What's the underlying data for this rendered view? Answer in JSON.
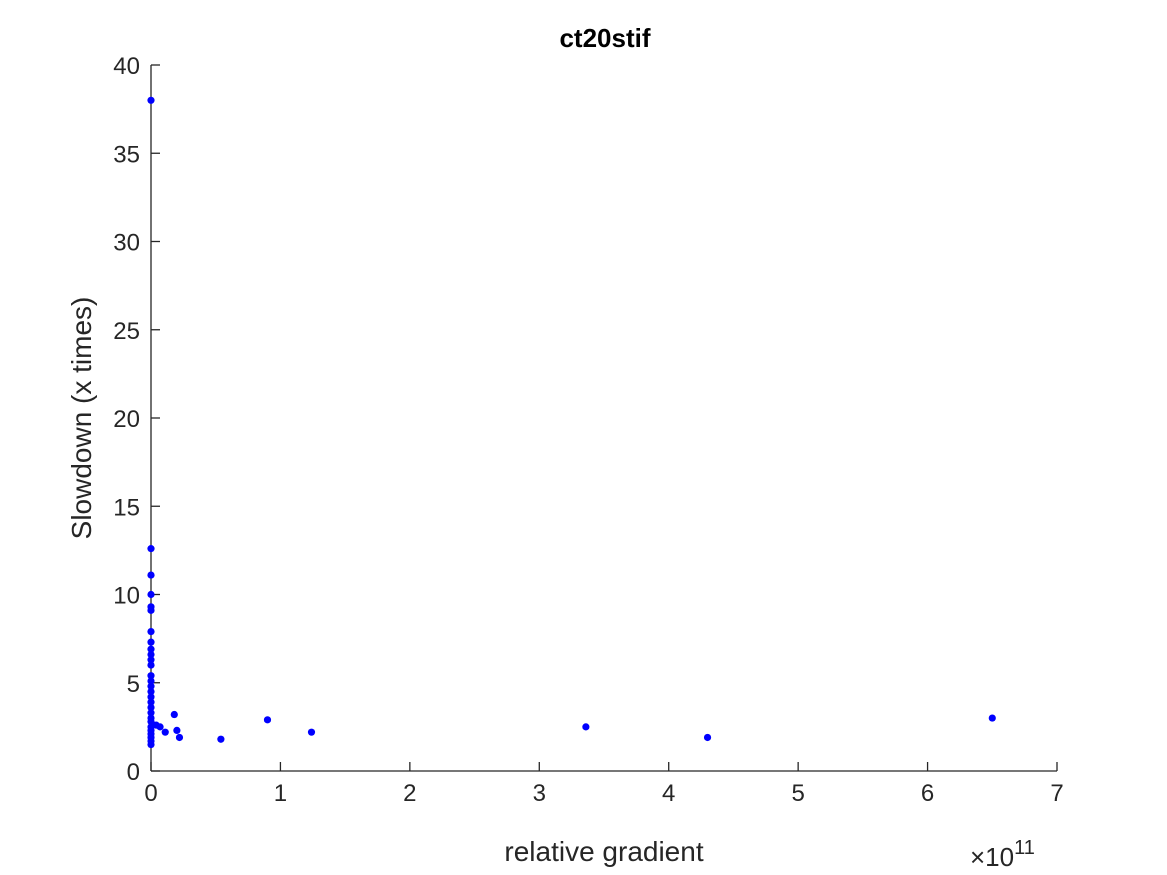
{
  "chart_data": {
    "type": "scatter",
    "title": "ct20stif",
    "xlabel": "relative gradient",
    "ylabel": "Slowdown (x times)",
    "x_exponent": "×10",
    "x_exponent_power": "11",
    "xlim": [
      0,
      7
    ],
    "ylim": [
      0,
      40
    ],
    "xticks": [
      0,
      1,
      2,
      3,
      4,
      5,
      6,
      7
    ],
    "yticks": [
      0,
      5,
      10,
      15,
      20,
      25,
      30,
      35,
      40
    ],
    "grid": false,
    "marker_color": "#0000ff",
    "points": [
      {
        "x": 0,
        "y": 38.0
      },
      {
        "x": 0,
        "y": 12.6
      },
      {
        "x": 0,
        "y": 11.1
      },
      {
        "x": 0,
        "y": 10.0
      },
      {
        "x": 0,
        "y": 9.3
      },
      {
        "x": 0,
        "y": 9.1
      },
      {
        "x": 0,
        "y": 7.9
      },
      {
        "x": 0,
        "y": 7.3
      },
      {
        "x": 0,
        "y": 6.9
      },
      {
        "x": 0,
        "y": 6.6
      },
      {
        "x": 0,
        "y": 6.3
      },
      {
        "x": 0,
        "y": 6.0
      },
      {
        "x": 0,
        "y": 5.4
      },
      {
        "x": 0,
        "y": 5.1
      },
      {
        "x": 0,
        "y": 4.8
      },
      {
        "x": 0,
        "y": 4.5
      },
      {
        "x": 0,
        "y": 4.2
      },
      {
        "x": 0,
        "y": 3.9
      },
      {
        "x": 0,
        "y": 3.6
      },
      {
        "x": 0,
        "y": 3.3
      },
      {
        "x": 0,
        "y": 3.0
      },
      {
        "x": 0,
        "y": 2.8
      },
      {
        "x": 0,
        "y": 2.5
      },
      {
        "x": 0,
        "y": 2.3
      },
      {
        "x": 0,
        "y": 2.1
      },
      {
        "x": 0,
        "y": 1.9
      },
      {
        "x": 0,
        "y": 1.7
      },
      {
        "x": 0,
        "y": 1.5
      },
      {
        "x": 0.04,
        "y": 2.6
      },
      {
        "x": 0.07,
        "y": 2.5
      },
      {
        "x": 0.11,
        "y": 2.2
      },
      {
        "x": 0.18,
        "y": 3.2
      },
      {
        "x": 0.2,
        "y": 2.3
      },
      {
        "x": 0.22,
        "y": 1.9
      },
      {
        "x": 0.54,
        "y": 1.8
      },
      {
        "x": 0.9,
        "y": 2.9
      },
      {
        "x": 1.24,
        "y": 2.2
      },
      {
        "x": 3.36,
        "y": 2.5
      },
      {
        "x": 4.3,
        "y": 1.9
      },
      {
        "x": 6.5,
        "y": 3.0
      }
    ]
  }
}
